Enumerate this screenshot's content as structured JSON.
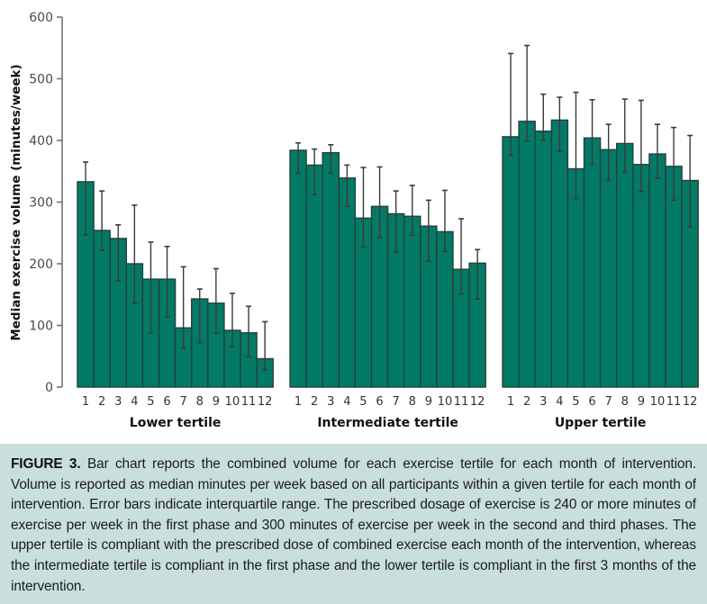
{
  "chart_data": {
    "type": "bar",
    "title": "",
    "xlabel": "",
    "ylabel": "Median exercise volume (minutes/week)",
    "ylim": [
      0,
      600
    ],
    "yticks": [
      0,
      100,
      200,
      300,
      400,
      500,
      600
    ],
    "grid": false,
    "legend": "none",
    "bar_color": "#037a65",
    "categories": [
      "1",
      "2",
      "3",
      "4",
      "5",
      "6",
      "7",
      "8",
      "9",
      "10",
      "11",
      "12"
    ],
    "groups": [
      {
        "name": "Lower tertile",
        "values": [
          333,
          254,
          241,
          200,
          175,
          175,
          96,
          143,
          136,
          92,
          88,
          46
        ],
        "err_low": [
          247,
          222,
          172,
          136,
          88,
          114,
          63,
          72,
          88,
          65,
          49,
          28
        ],
        "err_high": [
          365,
          318,
          263,
          295,
          235,
          228,
          195,
          159,
          192,
          152,
          131,
          106
        ]
      },
      {
        "name": "Intermediate tertile",
        "values": [
          384,
          360,
          380,
          339,
          274,
          293,
          281,
          277,
          261,
          252,
          191,
          201
        ],
        "err_low": [
          347,
          312,
          347,
          293,
          227,
          242,
          219,
          246,
          204,
          220,
          151,
          143
        ],
        "err_high": [
          396,
          386,
          393,
          360,
          356,
          357,
          318,
          327,
          303,
          319,
          273,
          223
        ]
      },
      {
        "name": "Upper tertile",
        "values": [
          406,
          431,
          415,
          433,
          354,
          404,
          385,
          395,
          361,
          378,
          358,
          335
        ],
        "err_low": [
          376,
          399,
          400,
          382,
          306,
          361,
          335,
          348,
          317,
          339,
          303,
          260
        ],
        "err_high": [
          541,
          554,
          475,
          470,
          478,
          466,
          426,
          467,
          465,
          426,
          421,
          408
        ]
      }
    ]
  },
  "caption": {
    "label": "FIGURE 3.",
    "text": " Bar chart reports the combined volume for each exercise tertile for each month of intervention. Volume is reported as median minutes per week based on all participants within a given tertile for each month of intervention. Error bars indicate interquartile range. The prescribed dosage of exercise is 240 or more minutes of exercise per week in the first phase and 300 minutes of exercise per week in the second and third phases. The upper tertile is compliant with the prescribed dose of combined exercise each month of the intervention, whereas the intermediate tertile is compliant in the first phase and the lower tertile is compliant in the first 3 months of the intervention."
  }
}
